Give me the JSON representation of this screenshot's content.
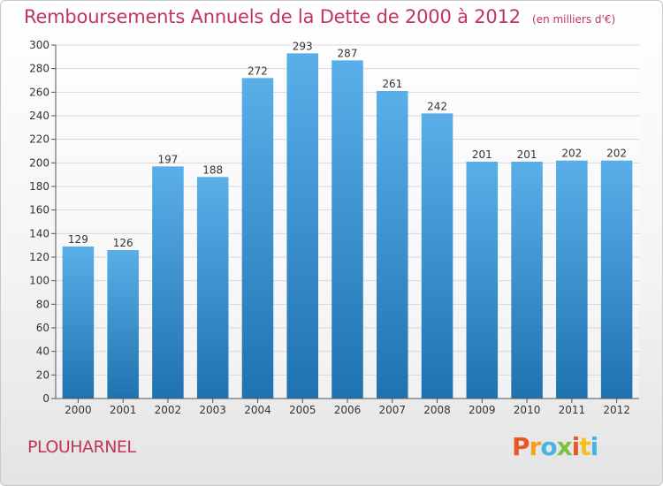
{
  "header": {
    "title": "Remboursements Annuels de la Dette de 2000 à 2012",
    "unit_note": "(en milliers d'€)"
  },
  "footer": {
    "commune": "PLOUHARNEL",
    "logo_text": "Proxiti",
    "logo_colors": [
      "#e8572a",
      "#f2a21b",
      "#4ab3e6",
      "#7cc242",
      "#e8572a",
      "#f2c21b",
      "#4ab3e6"
    ]
  },
  "colors": {
    "bar_top": "#5aafe9",
    "bar_bottom": "#1f72b0",
    "grid": "#d8d8d8",
    "axis_text": "#333333",
    "title": "#c0355a"
  },
  "chart_data": {
    "type": "bar",
    "title": "Remboursements Annuels de la Dette de 2000 à 2012",
    "subtitle": "(en milliers d'€)",
    "xlabel": "",
    "ylabel": "",
    "categories": [
      "2000",
      "2001",
      "2002",
      "2003",
      "2004",
      "2005",
      "2006",
      "2007",
      "2008",
      "2009",
      "2010",
      "2011",
      "2012"
    ],
    "values": [
      129,
      126,
      197,
      188,
      272,
      293,
      287,
      261,
      242,
      201,
      201,
      202,
      202
    ],
    "ylim": [
      0,
      300
    ],
    "yticks": [
      0,
      20,
      40,
      60,
      80,
      100,
      120,
      140,
      160,
      180,
      200,
      220,
      240,
      260,
      280,
      300
    ],
    "grid": true,
    "legend": "none",
    "data_labels": true
  }
}
